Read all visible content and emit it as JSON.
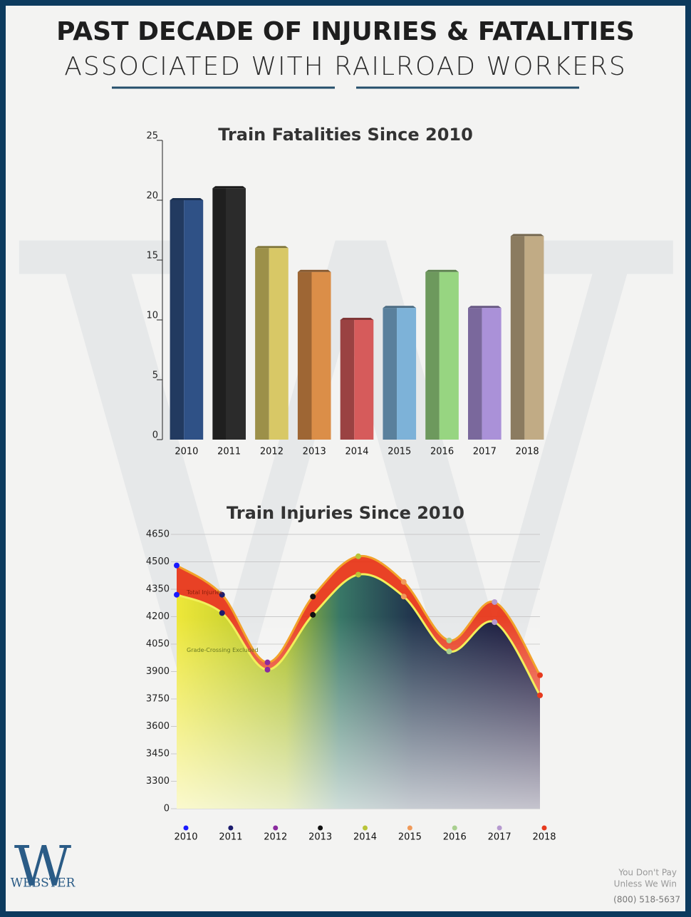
{
  "header": {
    "title": "PAST DECADE OF INJURIES & FATALITIES",
    "subtitle": "ASSOCIATED WITH RAILROAD WORKERS"
  },
  "chart_data": [
    {
      "type": "bar",
      "title": "Train Fatalities Since 2010",
      "categories": [
        "2010",
        "2011",
        "2012",
        "2013",
        "2014",
        "2015",
        "2016",
        "2017",
        "2018"
      ],
      "values": [
        20,
        21,
        16,
        14,
        10,
        11,
        14,
        11,
        17
      ],
      "colors": [
        "#2f5186",
        "#2b2b2b",
        "#d8c866",
        "#db8e48",
        "#d65b5b",
        "#7db2d8",
        "#97d581",
        "#aa91d8",
        "#c1ab85"
      ],
      "ylim": [
        0,
        25
      ],
      "yticks": [
        0,
        5,
        10,
        15,
        20,
        25
      ]
    },
    {
      "type": "area",
      "title": "Train Injuries Since 2010",
      "categories": [
        "2010",
        "2011",
        "2012",
        "2013",
        "2014",
        "2015",
        "2016",
        "2017",
        "2018"
      ],
      "point_colors": [
        "#1a1aff",
        "#1c1c6e",
        "#8a2a9e",
        "#111111",
        "#b9c437",
        "#f09a5a",
        "#a9cf8f",
        "#b69ad0",
        "#e63a1e"
      ],
      "series": [
        {
          "name": "Total Injuries",
          "color": "#e8381a",
          "values": [
            4480,
            4320,
            3950,
            4310,
            4530,
            4390,
            4070,
            4280,
            3880
          ]
        },
        {
          "name": "Grade-Crossing Excluded",
          "color": "#f2ef5a",
          "values": [
            4320,
            4220,
            3910,
            4210,
            4430,
            4310,
            4010,
            4170,
            3770
          ]
        }
      ],
      "ylim": [
        0,
        4650
      ],
      "ybreak": [
        0,
        3150
      ],
      "yticks": [
        0,
        3300,
        3450,
        3600,
        3750,
        3900,
        4050,
        4200,
        4350,
        4500,
        4650
      ],
      "grid": true
    }
  ],
  "footer": {
    "logo": "WEBSTER",
    "tagline_1": "You Don't Pay",
    "tagline_2": "Unless We Win",
    "phone": "(800) 518-5637"
  }
}
